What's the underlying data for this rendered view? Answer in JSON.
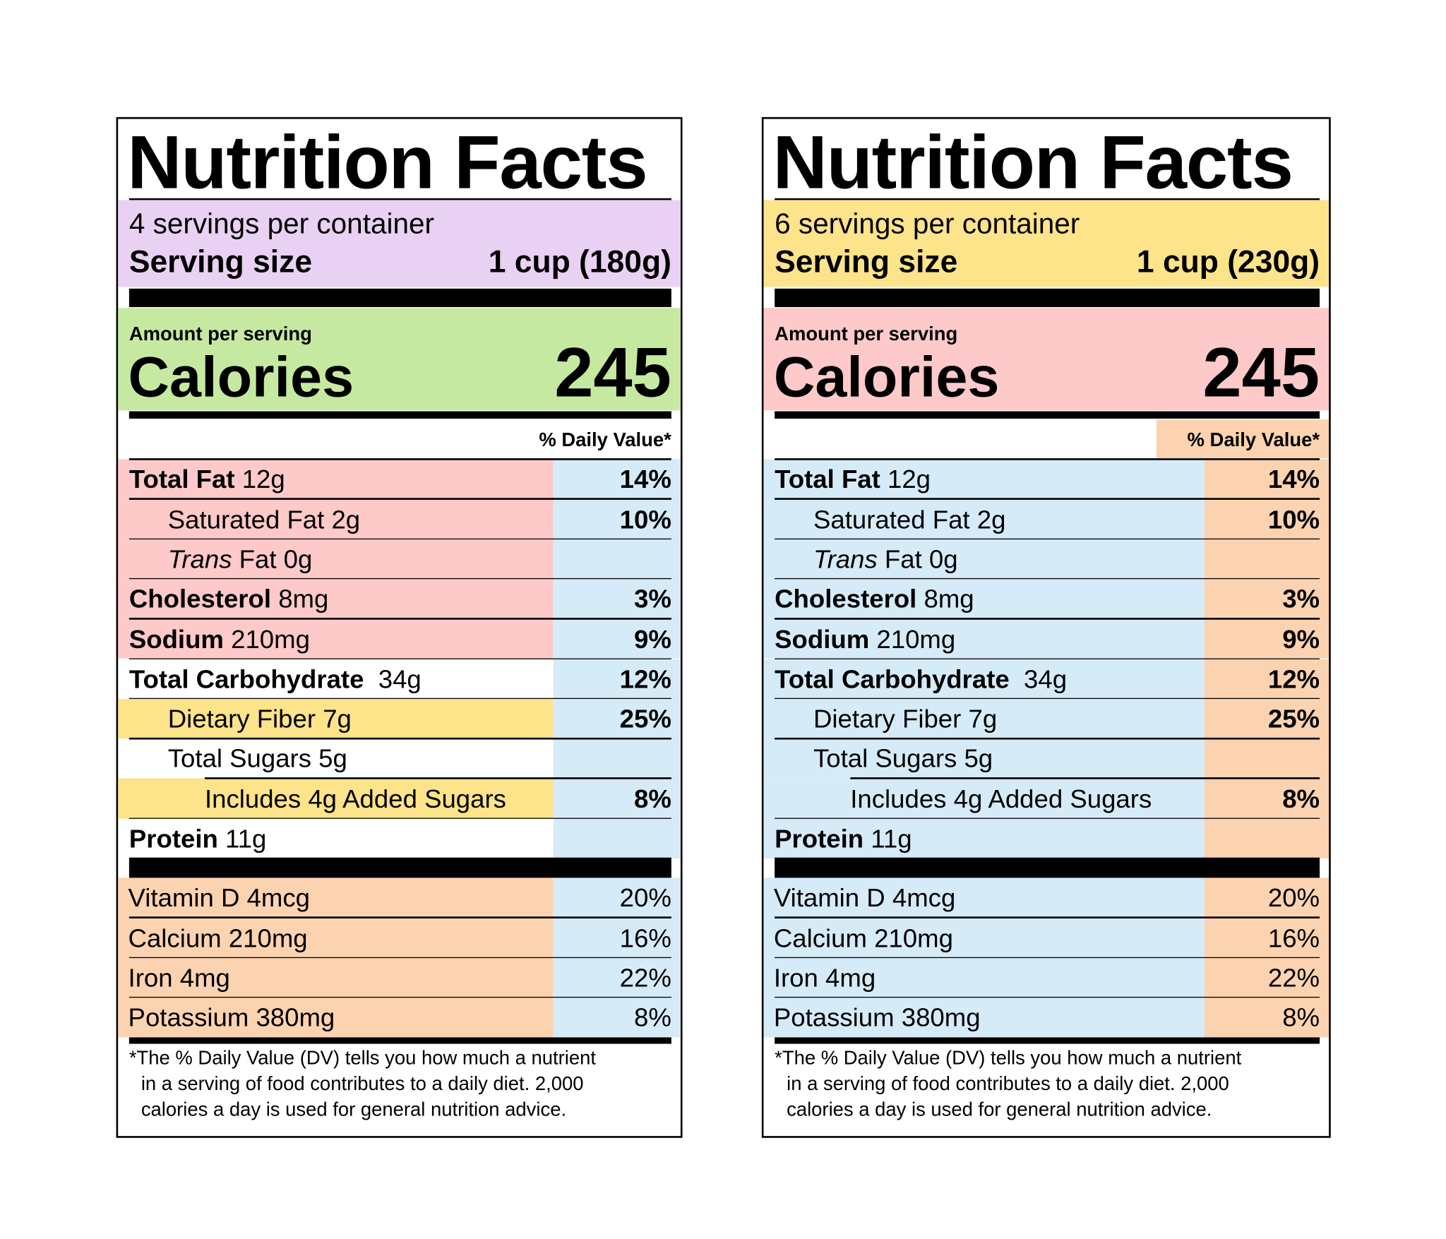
{
  "labels": [
    {
      "title": "Nutrition Facts",
      "servings": "4 servings per container",
      "serving_size_label": "Serving size",
      "serving_size_value": "1 cup (180g)",
      "amount_per_serving": "Amount per serving",
      "calories_label": "Calories",
      "calories_value": "245",
      "daily_value_header": "% Daily Value*",
      "nutrients": [
        {
          "bold": "Total Fat",
          "text": "12g",
          "dv": "14%"
        },
        {
          "text": "Saturated Fat 2g",
          "dv": "10%"
        },
        {
          "italic": "Trans",
          "text": "Fat 0g"
        },
        {
          "bold": "Cholesterol",
          "text": "8mg",
          "dv": "3%"
        },
        {
          "bold": "Sodium",
          "text": "210mg",
          "dv": "9%"
        },
        {
          "bold": "Total Carbohydrate",
          "text": "34g",
          "dv": "12%"
        },
        {
          "text": "Dietary Fiber 7g",
          "dv": "25%"
        },
        {
          "text": "Total Sugars 5g"
        },
        {
          "text": "Includes 4g Added Sugars",
          "dv": "8%"
        },
        {
          "bold": "Protein",
          "text": "11g"
        }
      ],
      "vitamins": [
        {
          "text": "Vitamin D 4mcg",
          "dv": "20%"
        },
        {
          "text": "Calcium 210mg",
          "dv": "16%"
        },
        {
          "text": "Iron 4mg",
          "dv": "22%"
        },
        {
          "text": "Potassium 380mg",
          "dv": "8%"
        }
      ],
      "footnote": [
        "*The % Daily Value (DV) tells you how much a nutrient",
        "in a serving of food contributes to a daily diet. 2,000",
        "calories a day is used for general nutrition advice."
      ]
    },
    {
      "title": "Nutrition Facts",
      "servings": "6 servings per container",
      "serving_size_label": "Serving size",
      "serving_size_value": "1 cup (230g)",
      "amount_per_serving": "Amount per serving",
      "calories_label": "Calories",
      "calories_value": "245",
      "daily_value_header": "% Daily Value*",
      "nutrients": [
        {
          "bold": "Total Fat",
          "text": "12g",
          "dv": "14%"
        },
        {
          "text": "Saturated Fat 2g",
          "dv": "10%"
        },
        {
          "italic": "Trans",
          "text": "Fat 0g"
        },
        {
          "bold": "Cholesterol",
          "text": "8mg",
          "dv": "3%"
        },
        {
          "bold": "Sodium",
          "text": "210mg",
          "dv": "9%"
        },
        {
          "bold": "Total Carbohydrate",
          "text": "34g",
          "dv": "12%"
        },
        {
          "text": "Dietary Fiber 7g",
          "dv": "25%"
        },
        {
          "text": "Total Sugars 5g"
        },
        {
          "text": "Includes 4g Added Sugars",
          "dv": "8%"
        },
        {
          "bold": "Protein",
          "text": "11g"
        }
      ],
      "vitamins": [
        {
          "text": "Vitamin D 4mcg",
          "dv": "20%"
        },
        {
          "text": "Calcium 210mg",
          "dv": "16%"
        },
        {
          "text": "Iron 4mg",
          "dv": "22%"
        },
        {
          "text": "Potassium 380mg",
          "dv": "8%"
        }
      ],
      "footnote": [
        "*The % Daily Value (DV) tells you how much a nutrient",
        "in a serving of food contributes to a daily diet. 2,000",
        "calories a day is used for general nutrition advice."
      ]
    }
  ]
}
